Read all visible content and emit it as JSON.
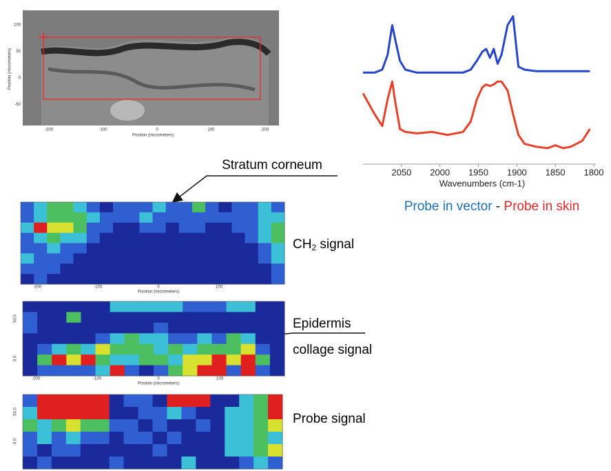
{
  "image": {
    "xticks": [
      -200,
      -100,
      0,
      100,
      200
    ],
    "yticks": [
      100,
      50,
      0,
      -50
    ],
    "x_label": "Position (micrometers)",
    "y_label": "Position (micrometers)"
  },
  "spectrum": {
    "xlim": [
      2100,
      1800
    ],
    "ylim": [
      0,
      100
    ],
    "xticks": [
      2050,
      2000,
      1950,
      1900,
      1850,
      1800
    ],
    "x_label": "Wavenumbers (cm-1)",
    "x": [
      2100,
      2085,
      2075,
      2068,
      2062,
      2058,
      2052,
      2045,
      2030,
      2010,
      1990,
      1970,
      1960,
      1952,
      1945,
      1940,
      1935,
      1930,
      1925,
      1920,
      1912,
      1905,
      1898,
      1890,
      1875,
      1860,
      1850,
      1840,
      1830,
      1815,
      1805
    ],
    "series": [
      {
        "name": "Probe in vector",
        "color": "#2544c8",
        "values": [
          58,
          58,
          60,
          70,
          90,
          80,
          66,
          60,
          58,
          58,
          58,
          58,
          60,
          66,
          72,
          74,
          68,
          74,
          64,
          70,
          90,
          96,
          62,
          60,
          59,
          59,
          59,
          59,
          59,
          59,
          59
        ]
      },
      {
        "name": "Probe in skin",
        "color": "#e8412a",
        "values": [
          44,
          30,
          22,
          40,
          52,
          38,
          20,
          18,
          17,
          18,
          16,
          18,
          25,
          40,
          48,
          50,
          49,
          50,
          52,
          52,
          46,
          30,
          16,
          10,
          8,
          7,
          9,
          7,
          8,
          12,
          20
        ]
      }
    ],
    "legend_separator": " - "
  },
  "annotations": {
    "stratum": "Stratum corneum",
    "ch2": {
      "main": "CH",
      "sub": "2",
      "rest": " signal"
    },
    "epidermis": "Epidermis",
    "collage": "collage signal",
    "probe": "Probe signal"
  },
  "palette": [
    "#1a2a9a",
    "#2f5fd0",
    "#3cc0d8",
    "#4cc060",
    "#d8e030",
    "#e02020"
  ],
  "heatmaps": [
    {
      "xticks": [
        -200,
        -100,
        0,
        100
      ],
      "x_label": "Position (micrometers)",
      "cells": [
        [
          1,
          2,
          3,
          3,
          2,
          1,
          0,
          1,
          1,
          1,
          2,
          1,
          1,
          3,
          1,
          0,
          1,
          1,
          2,
          1
        ],
        [
          1,
          2,
          3,
          3,
          3,
          2,
          1,
          1,
          1,
          2,
          1,
          1,
          1,
          1,
          1,
          1,
          1,
          1,
          2,
          2
        ],
        [
          2,
          5,
          4,
          4,
          3,
          1,
          1,
          0,
          0,
          1,
          1,
          0,
          1,
          1,
          0,
          0,
          1,
          1,
          2,
          3
        ],
        [
          1,
          2,
          3,
          2,
          2,
          1,
          0,
          0,
          0,
          0,
          0,
          0,
          0,
          0,
          0,
          0,
          0,
          1,
          2,
          3
        ],
        [
          1,
          1,
          2,
          1,
          1,
          0,
          0,
          0,
          0,
          0,
          0,
          0,
          0,
          0,
          0,
          0,
          0,
          0,
          1,
          2
        ],
        [
          2,
          1,
          1,
          1,
          0,
          0,
          0,
          0,
          0,
          0,
          0,
          0,
          0,
          0,
          0,
          0,
          0,
          0,
          1,
          2
        ],
        [
          1,
          1,
          1,
          0,
          0,
          0,
          0,
          0,
          0,
          0,
          0,
          0,
          0,
          0,
          0,
          0,
          0,
          0,
          0,
          1
        ],
        [
          0,
          1,
          0,
          0,
          0,
          0,
          0,
          0,
          0,
          0,
          0,
          0,
          0,
          0,
          0,
          0,
          0,
          0,
          0,
          1
        ]
      ]
    },
    {
      "xticks": [
        -200,
        -100,
        0,
        100
      ],
      "x_label": "Position (micrometers)",
      "yticks": [
        {
          "value": 50,
          "label": "50.0"
        },
        {
          "value": 0,
          "label": "0.0"
        }
      ],
      "cells": [
        [
          0,
          0,
          0,
          0,
          0,
          0,
          2,
          2,
          2,
          2,
          2,
          1,
          1,
          1,
          2,
          2,
          0,
          0
        ],
        [
          1,
          0,
          0,
          3,
          0,
          0,
          0,
          0,
          0,
          0,
          0,
          0,
          0,
          0,
          0,
          0,
          0,
          0
        ],
        [
          1,
          0,
          0,
          0,
          0,
          0,
          0,
          0,
          0,
          1,
          0,
          0,
          0,
          0,
          0,
          0,
          0,
          0
        ],
        [
          0,
          0,
          0,
          0,
          0,
          1,
          2,
          3,
          2,
          2,
          1,
          1,
          2,
          1,
          3,
          2,
          0,
          0
        ],
        [
          0,
          1,
          2,
          3,
          2,
          4,
          3,
          3,
          3,
          2,
          3,
          2,
          3,
          3,
          3,
          4,
          1,
          0
        ],
        [
          0,
          3,
          5,
          4,
          5,
          3,
          2,
          2,
          3,
          3,
          2,
          4,
          4,
          5,
          4,
          5,
          3,
          0
        ],
        [
          0,
          1,
          1,
          1,
          1,
          2,
          5,
          1,
          0,
          1,
          3,
          4,
          5,
          5,
          1,
          5,
          1,
          0
        ]
      ]
    },
    {
      "yticks": [
        {
          "value": 50,
          "label": "50.0"
        },
        {
          "value": 0,
          "label": "0.0"
        }
      ],
      "cells": [
        [
          1,
          5,
          5,
          5,
          5,
          5,
          0,
          1,
          1,
          0,
          5,
          5,
          5,
          0,
          0,
          2,
          3,
          5
        ],
        [
          2,
          5,
          5,
          5,
          5,
          5,
          0,
          0,
          1,
          1,
          2,
          1,
          0,
          0,
          2,
          2,
          3,
          5
        ],
        [
          3,
          2,
          3,
          4,
          3,
          3,
          1,
          1,
          0,
          1,
          0,
          0,
          1,
          0,
          2,
          2,
          3,
          4
        ],
        [
          1,
          2,
          1,
          2,
          1,
          1,
          0,
          1,
          1,
          0,
          1,
          0,
          0,
          0,
          2,
          2,
          3,
          2
        ],
        [
          1,
          0,
          1,
          1,
          0,
          0,
          0,
          0,
          0,
          1,
          0,
          0,
          0,
          0,
          2,
          2,
          3,
          4
        ],
        [
          0,
          1,
          0,
          0,
          0,
          0,
          1,
          0,
          0,
          0,
          0,
          2,
          0,
          0,
          0,
          1,
          2,
          1
        ]
      ]
    }
  ]
}
